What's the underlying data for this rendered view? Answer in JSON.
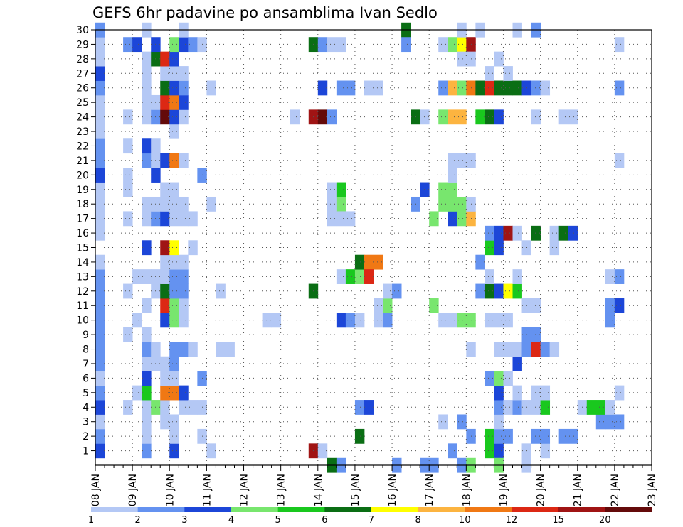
{
  "chart_data": {
    "type": "heatmap",
    "title": "GEFS 6hr padavine po ansamblima Ivan Sedlo",
    "xlabel": "",
    "ylabel": "",
    "x_tick_labels": [
      "08 JAN",
      "09 JAN",
      "10 JAN",
      "11 JAN",
      "12 JAN",
      "13 JAN",
      "14 JAN",
      "15 JAN",
      "16 JAN",
      "17 JAN",
      "18 JAN",
      "19 JAN",
      "20 JAN",
      "21 JAN",
      "22 JAN",
      "23 JAN"
    ],
    "xlim": [
      0,
      60
    ],
    "x_unit": "6-hour steps from 08 JAN 00Z",
    "y_tick_labels": [
      "1",
      "2",
      "3",
      "4",
      "5",
      "6",
      "7",
      "8",
      "9",
      "10",
      "11",
      "12",
      "13",
      "14",
      "15",
      "16",
      "17",
      "18",
      "19",
      "20",
      "21",
      "22",
      "23",
      "24",
      "25",
      "26",
      "27",
      "28",
      "29",
      "30"
    ],
    "ylim": [
      0,
      30
    ],
    "y_unit": "ensemble member",
    "grid": true,
    "legend": {
      "placement": "bottom",
      "labels": [
        "1",
        "2",
        "3",
        "4",
        "5",
        "6",
        "7",
        "8",
        "10",
        "12",
        "15",
        "20"
      ],
      "colors": [
        "#b4c8f5",
        "#6492f0",
        "#1c46d8",
        "#78e66e",
        "#19c81e",
        "#0a6e14",
        "#ffff00",
        "#fcb440",
        "#f07814",
        "#dc2814",
        "#a01414",
        "#640a0a"
      ]
    },
    "cells_format": "[time_step, member, class_index]",
    "cells": [
      [
        0,
        1,
        2
      ],
      [
        0,
        2,
        1
      ],
      [
        0,
        3,
        0
      ],
      [
        0,
        4,
        2
      ],
      [
        0,
        5,
        1
      ],
      [
        0,
        6,
        0
      ],
      [
        0,
        7,
        1
      ],
      [
        0,
        8,
        1
      ],
      [
        0,
        9,
        1
      ],
      [
        0,
        10,
        1
      ],
      [
        0,
        11,
        1
      ],
      [
        0,
        12,
        1
      ],
      [
        0,
        13,
        1
      ],
      [
        0,
        14,
        0
      ],
      [
        0,
        16,
        0
      ],
      [
        0,
        17,
        0
      ],
      [
        0,
        18,
        0
      ],
      [
        0,
        19,
        0
      ],
      [
        0,
        20,
        2
      ],
      [
        0,
        21,
        1
      ],
      [
        0,
        22,
        1
      ],
      [
        0,
        23,
        0
      ],
      [
        0,
        24,
        0
      ],
      [
        0,
        25,
        0
      ],
      [
        0,
        26,
        1
      ],
      [
        0,
        27,
        2
      ],
      [
        0,
        28,
        0
      ],
      [
        0,
        29,
        0
      ],
      [
        0,
        30,
        1
      ],
      [
        4,
        13,
        0
      ],
      [
        4,
        10,
        0
      ],
      [
        4,
        5,
        0
      ],
      [
        3,
        4,
        0
      ],
      [
        3,
        9,
        0
      ],
      [
        3,
        12,
        0
      ],
      [
        3,
        17,
        0
      ],
      [
        3,
        19,
        0
      ],
      [
        3,
        20,
        0
      ],
      [
        3,
        24,
        0
      ],
      [
        3,
        29,
        1
      ],
      [
        4,
        29,
        2
      ],
      [
        3,
        22,
        0
      ],
      [
        5,
        1,
        1
      ],
      [
        5,
        2,
        0
      ],
      [
        5,
        3,
        0
      ],
      [
        5,
        4,
        0
      ],
      [
        5,
        5,
        4
      ],
      [
        5,
        6,
        2
      ],
      [
        5,
        7,
        0
      ],
      [
        5,
        8,
        1
      ],
      [
        5,
        9,
        0
      ],
      [
        5,
        11,
        0
      ],
      [
        5,
        13,
        0
      ],
      [
        5,
        15,
        2
      ],
      [
        5,
        17,
        0
      ],
      [
        5,
        18,
        0
      ],
      [
        5,
        21,
        1
      ],
      [
        5,
        22,
        2
      ],
      [
        5,
        24,
        0
      ],
      [
        5,
        25,
        0
      ],
      [
        5,
        26,
        0
      ],
      [
        5,
        27,
        0
      ],
      [
        5,
        28,
        0
      ],
      [
        5,
        30,
        0
      ],
      [
        6,
        4,
        3
      ],
      [
        6,
        7,
        0
      ],
      [
        6,
        8,
        0
      ],
      [
        6,
        12,
        0
      ],
      [
        6,
        13,
        0
      ],
      [
        6,
        17,
        1
      ],
      [
        6,
        18,
        0
      ],
      [
        6,
        20,
        2
      ],
      [
        6,
        21,
        0
      ],
      [
        6,
        22,
        0
      ],
      [
        6,
        24,
        1
      ],
      [
        6,
        25,
        0
      ],
      [
        6,
        28,
        5
      ],
      [
        6,
        29,
        2
      ],
      [
        7,
        3,
        0
      ],
      [
        7,
        4,
        0
      ],
      [
        7,
        5,
        8
      ],
      [
        7,
        6,
        0
      ],
      [
        7,
        7,
        0
      ],
      [
        7,
        10,
        2
      ],
      [
        7,
        11,
        9
      ],
      [
        7,
        12,
        5
      ],
      [
        7,
        13,
        0
      ],
      [
        7,
        14,
        0
      ],
      [
        7,
        15,
        10
      ],
      [
        7,
        17,
        2
      ],
      [
        7,
        18,
        0
      ],
      [
        7,
        19,
        0
      ],
      [
        7,
        21,
        2
      ],
      [
        7,
        24,
        11
      ],
      [
        7,
        25,
        9
      ],
      [
        7,
        26,
        5
      ],
      [
        7,
        27,
        0
      ],
      [
        7,
        28,
        9
      ],
      [
        8,
        1,
        2
      ],
      [
        8,
        2,
        0
      ],
      [
        8,
        3,
        0
      ],
      [
        8,
        5,
        8
      ],
      [
        8,
        6,
        0
      ],
      [
        8,
        7,
        1
      ],
      [
        8,
        8,
        1
      ],
      [
        8,
        10,
        3
      ],
      [
        8,
        11,
        3
      ],
      [
        8,
        12,
        1
      ],
      [
        8,
        13,
        1
      ],
      [
        8,
        14,
        0
      ],
      [
        8,
        15,
        6
      ],
      [
        8,
        17,
        0
      ],
      [
        8,
        18,
        0
      ],
      [
        8,
        19,
        0
      ],
      [
        8,
        21,
        8
      ],
      [
        8,
        23,
        0
      ],
      [
        8,
        24,
        2
      ],
      [
        8,
        25,
        8
      ],
      [
        8,
        26,
        2
      ],
      [
        8,
        27,
        0
      ],
      [
        8,
        28,
        2
      ],
      [
        8,
        29,
        3
      ],
      [
        9,
        4,
        0
      ],
      [
        9,
        5,
        2
      ],
      [
        9,
        8,
        1
      ],
      [
        9,
        10,
        0
      ],
      [
        9,
        11,
        0
      ],
      [
        9,
        12,
        1
      ],
      [
        9,
        13,
        1
      ],
      [
        9,
        14,
        0
      ],
      [
        9,
        17,
        0
      ],
      [
        9,
        18,
        0
      ],
      [
        9,
        21,
        0
      ],
      [
        9,
        24,
        0
      ],
      [
        9,
        25,
        2
      ],
      [
        9,
        26,
        1
      ],
      [
        9,
        27,
        0
      ],
      [
        9,
        29,
        2
      ],
      [
        9,
        30,
        0
      ],
      [
        10,
        4,
        0
      ],
      [
        10,
        8,
        0
      ],
      [
        10,
        15,
        0
      ],
      [
        10,
        17,
        0
      ],
      [
        10,
        29,
        1
      ],
      [
        11,
        6,
        1
      ],
      [
        11,
        4,
        0
      ],
      [
        11,
        20,
        1
      ],
      [
        11,
        2,
        0
      ],
      [
        11,
        29,
        0
      ],
      [
        12,
        1,
        0
      ],
      [
        12,
        18,
        0
      ],
      [
        12,
        26,
        0
      ],
      [
        13,
        12,
        0
      ],
      [
        13,
        8,
        0
      ],
      [
        14,
        8,
        0
      ],
      [
        18,
        10,
        0
      ],
      [
        19,
        10,
        0
      ],
      [
        21,
        24,
        0
      ],
      [
        23,
        1,
        10
      ],
      [
        23,
        12,
        5
      ],
      [
        23,
        24,
        10
      ],
      [
        23,
        29,
        5
      ],
      [
        24,
        1,
        0
      ],
      [
        24,
        24,
        11
      ],
      [
        24,
        29,
        1
      ],
      [
        24,
        26,
        2
      ],
      [
        25,
        29,
        0
      ],
      [
        25,
        24,
        1
      ],
      [
        25,
        0,
        5
      ],
      [
        25,
        18,
        0
      ],
      [
        25,
        17,
        0
      ],
      [
        25,
        19,
        0
      ],
      [
        26,
        10,
        2
      ],
      [
        26,
        13,
        0
      ],
      [
        26,
        18,
        3
      ],
      [
        26,
        19,
        4
      ],
      [
        26,
        26,
        1
      ],
      [
        26,
        29,
        0
      ],
      [
        26,
        0,
        1
      ],
      [
        26,
        17,
        0
      ],
      [
        27,
        10,
        1
      ],
      [
        27,
        13,
        4
      ],
      [
        27,
        17,
        0
      ],
      [
        27,
        26,
        1
      ],
      [
        28,
        13,
        3
      ],
      [
        28,
        14,
        5
      ],
      [
        28,
        2,
        5
      ],
      [
        28,
        4,
        1
      ],
      [
        28,
        10,
        0
      ],
      [
        29,
        4,
        2
      ],
      [
        29,
        14,
        8
      ],
      [
        29,
        13,
        9
      ],
      [
        29,
        26,
        0
      ],
      [
        30,
        14,
        8
      ],
      [
        30,
        11,
        0
      ],
      [
        30,
        10,
        0
      ],
      [
        30,
        26,
        0
      ],
      [
        31,
        10,
        1
      ],
      [
        31,
        11,
        3
      ],
      [
        31,
        12,
        0
      ],
      [
        32,
        12,
        1
      ],
      [
        32,
        0,
        1
      ],
      [
        33,
        30,
        5
      ],
      [
        33,
        29,
        1
      ],
      [
        34,
        24,
        5
      ],
      [
        34,
        18,
        1
      ],
      [
        35,
        24,
        0
      ],
      [
        35,
        19,
        2
      ],
      [
        35,
        0,
        1
      ],
      [
        36,
        11,
        3
      ],
      [
        36,
        17,
        3
      ],
      [
        36,
        0,
        1
      ],
      [
        37,
        3,
        0
      ],
      [
        37,
        10,
        0
      ],
      [
        37,
        18,
        3
      ],
      [
        37,
        19,
        3
      ],
      [
        37,
        24,
        3
      ],
      [
        37,
        26,
        1
      ],
      [
        37,
        29,
        0
      ],
      [
        38,
        1,
        1
      ],
      [
        38,
        10,
        0
      ],
      [
        38,
        17,
        2
      ],
      [
        38,
        18,
        3
      ],
      [
        38,
        19,
        3
      ],
      [
        38,
        20,
        0
      ],
      [
        38,
        21,
        0
      ],
      [
        38,
        24,
        7
      ],
      [
        38,
        26,
        7
      ],
      [
        38,
        29,
        3
      ],
      [
        39,
        3,
        1
      ],
      [
        39,
        10,
        3
      ],
      [
        39,
        17,
        3
      ],
      [
        39,
        18,
        3
      ],
      [
        39,
        21,
        0
      ],
      [
        39,
        24,
        7
      ],
      [
        39,
        26,
        3
      ],
      [
        39,
        29,
        6
      ],
      [
        39,
        30,
        0
      ],
      [
        39,
        0,
        1
      ],
      [
        39,
        28,
        0
      ],
      [
        40,
        2,
        1
      ],
      [
        40,
        8,
        0
      ],
      [
        40,
        10,
        3
      ],
      [
        40,
        17,
        7
      ],
      [
        40,
        18,
        0
      ],
      [
        40,
        21,
        0
      ],
      [
        40,
        26,
        8
      ],
      [
        40,
        29,
        10
      ],
      [
        40,
        0,
        3
      ],
      [
        40,
        28,
        0
      ],
      [
        41,
        12,
        1
      ],
      [
        41,
        14,
        1
      ],
      [
        41,
        24,
        4
      ],
      [
        41,
        26,
        5
      ],
      [
        41,
        30,
        0
      ],
      [
        42,
        1,
        4
      ],
      [
        42,
        2,
        4
      ],
      [
        42,
        6,
        1
      ],
      [
        42,
        12,
        5
      ],
      [
        42,
        13,
        0
      ],
      [
        42,
        15,
        4
      ],
      [
        42,
        16,
        1
      ],
      [
        42,
        24,
        5
      ],
      [
        42,
        26,
        9
      ],
      [
        42,
        10,
        0
      ],
      [
        42,
        27,
        0
      ],
      [
        43,
        1,
        2
      ],
      [
        43,
        2,
        1
      ],
      [
        43,
        3,
        0
      ],
      [
        43,
        4,
        1
      ],
      [
        43,
        5,
        2
      ],
      [
        43,
        6,
        3
      ],
      [
        43,
        8,
        0
      ],
      [
        43,
        10,
        0
      ],
      [
        43,
        12,
        2
      ],
      [
        43,
        15,
        2
      ],
      [
        43,
        16,
        2
      ],
      [
        43,
        24,
        2
      ],
      [
        43,
        26,
        5
      ],
      [
        43,
        0,
        3
      ],
      [
        43,
        28,
        0
      ],
      [
        44,
        2,
        1
      ],
      [
        44,
        4,
        0
      ],
      [
        44,
        6,
        0
      ],
      [
        44,
        8,
        0
      ],
      [
        44,
        16,
        10
      ],
      [
        44,
        12,
        6
      ],
      [
        44,
        10,
        0
      ],
      [
        44,
        26,
        5
      ],
      [
        44,
        27,
        0
      ],
      [
        45,
        4,
        1
      ],
      [
        45,
        5,
        0
      ],
      [
        45,
        7,
        2
      ],
      [
        45,
        8,
        0
      ],
      [
        45,
        12,
        4
      ],
      [
        45,
        13,
        0
      ],
      [
        45,
        16,
        0
      ],
      [
        45,
        26,
        5
      ],
      [
        45,
        30,
        0
      ],
      [
        46,
        1,
        0
      ],
      [
        46,
        4,
        0
      ],
      [
        46,
        8,
        1
      ],
      [
        46,
        9,
        1
      ],
      [
        46,
        11,
        0
      ],
      [
        46,
        15,
        0
      ],
      [
        46,
        26,
        2
      ],
      [
        46,
        0,
        0
      ],
      [
        47,
        2,
        1
      ],
      [
        47,
        4,
        0
      ],
      [
        47,
        5,
        0
      ],
      [
        47,
        8,
        9
      ],
      [
        47,
        9,
        1
      ],
      [
        47,
        11,
        0
      ],
      [
        47,
        16,
        5
      ],
      [
        47,
        24,
        0
      ],
      [
        47,
        26,
        1
      ],
      [
        47,
        30,
        1
      ],
      [
        48,
        1,
        0
      ],
      [
        48,
        2,
        1
      ],
      [
        48,
        4,
        4
      ],
      [
        48,
        5,
        0
      ],
      [
        48,
        8,
        1
      ],
      [
        48,
        26,
        0
      ],
      [
        49,
        8,
        0
      ],
      [
        49,
        16,
        0
      ],
      [
        49,
        15,
        0
      ],
      [
        50,
        2,
        1
      ],
      [
        50,
        16,
        5
      ],
      [
        50,
        24,
        0
      ],
      [
        51,
        2,
        1
      ],
      [
        51,
        16,
        2
      ],
      [
        51,
        24,
        0
      ],
      [
        52,
        4,
        0
      ],
      [
        53,
        4,
        4
      ],
      [
        54,
        3,
        1
      ],
      [
        54,
        4,
        4
      ],
      [
        55,
        3,
        1
      ],
      [
        55,
        4,
        0
      ],
      [
        55,
        13,
        0
      ],
      [
        55,
        11,
        1
      ],
      [
        55,
        10,
        1
      ],
      [
        56,
        3,
        1
      ],
      [
        56,
        5,
        0
      ],
      [
        56,
        11,
        2
      ],
      [
        56,
        13,
        1
      ],
      [
        56,
        29,
        0
      ],
      [
        56,
        26,
        1
      ],
      [
        56,
        21,
        0
      ]
    ]
  }
}
